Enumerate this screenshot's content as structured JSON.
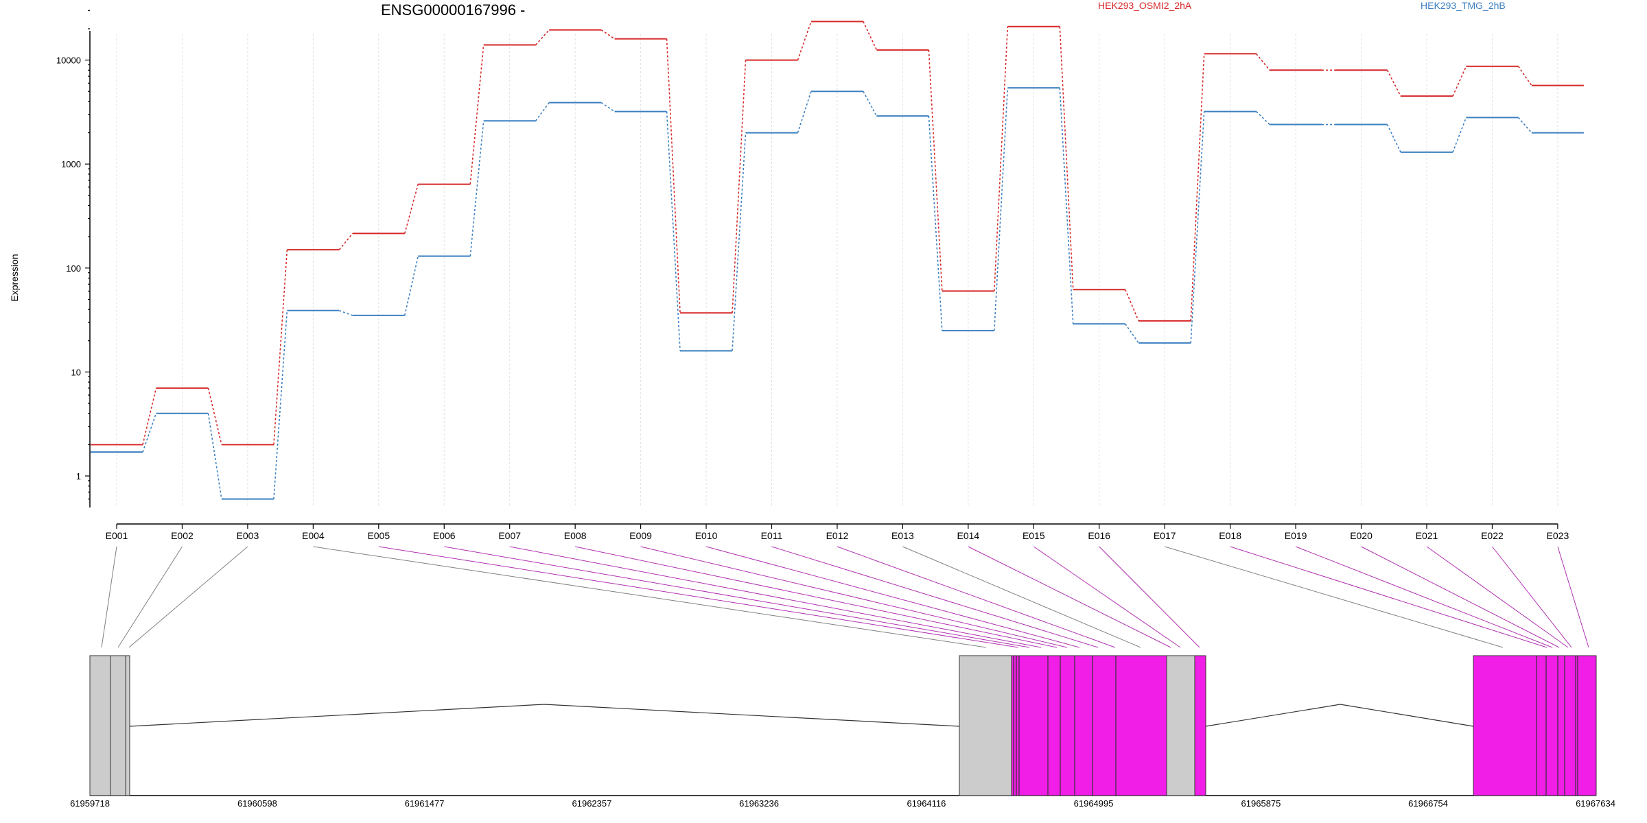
{
  "chart_data": {
    "type": "line",
    "title": "ENSG00000167996 -",
    "ylabel": "Expression",
    "yscale": "log",
    "ylim": [
      0.5,
      35000
    ],
    "yticks": [
      1,
      10,
      100,
      1000,
      10000
    ],
    "ytick_labels": [
      "1",
      "10",
      "100",
      "1000",
      "10000"
    ],
    "categories": [
      "E001",
      "E002",
      "E003",
      "E004",
      "E005",
      "E006",
      "E007",
      "E008",
      "E009",
      "E010",
      "E011",
      "E012",
      "E013",
      "E014",
      "E015",
      "E016",
      "E017",
      "E018",
      "E019",
      "E020",
      "E021",
      "E022",
      "E023"
    ],
    "series": [
      {
        "name": "HEK293_OSMI2_2hA",
        "color": "#d62728",
        "values": [
          2,
          7,
          2,
          150,
          215,
          640,
          14000,
          19500,
          16000,
          37,
          10000,
          23500,
          12500,
          60,
          21000,
          62,
          31,
          11500,
          8000,
          8000,
          4500,
          8700,
          5700
        ]
      },
      {
        "name": "HEK293_TMG_2hB",
        "color": "#3a7fc1",
        "values": [
          1.7,
          4,
          0.6,
          39,
          35,
          130,
          2600,
          3900,
          3200,
          16,
          2000,
          5000,
          2900,
          25,
          5400,
          29,
          19,
          3200,
          2400,
          2400,
          1300,
          2800,
          2000
        ]
      }
    ],
    "grid": true,
    "legend_placement": "top-right"
  },
  "gene_model": {
    "coordinate_ticks": [
      "61959718",
      "61960598",
      "61961477",
      "61962357",
      "61963236",
      "61964116",
      "61964995",
      "61965875",
      "61966754",
      "61967634"
    ],
    "coord_min": 61959718,
    "coord_max": 61967634,
    "colors": {
      "exon_gray": "#cccccc",
      "exon_magenta": "#f01ee6",
      "connector_gray": "#808080",
      "connector_magenta": "#b030b0"
    }
  }
}
